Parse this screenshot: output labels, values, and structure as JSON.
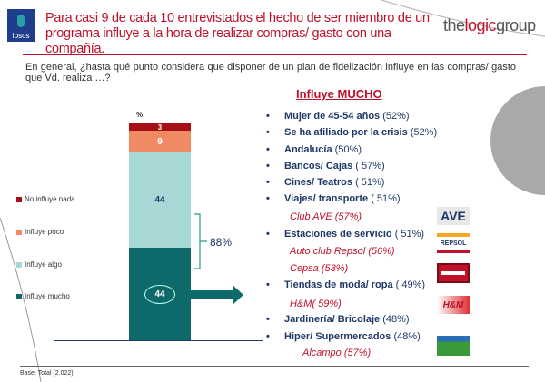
{
  "header": {
    "ipsos_logo": "Ipsos",
    "title": "Para casi 9 de cada 10 entrevistados el hecho de ser miembro de un programa influye a la hora de realizar compras/ gasto con una compañía.",
    "brand_pre": "the",
    "brand_mid": "logic",
    "brand_post": "group"
  },
  "question": "En general, ¿hasta qué punto considera que disponer de un plan de fidelización influye en las compras/ gasto que Vd. realiza …?",
  "chart": {
    "unit_label": "%",
    "segments": [
      {
        "label": "No influye nada",
        "value": 3,
        "color": "#a50f15"
      },
      {
        "label": "Influye poco",
        "value": 9,
        "color": "#ef8a62"
      },
      {
        "label": "Influye algo",
        "value": 44,
        "color": "#a8d8d6"
      },
      {
        "label": "Influye mucho",
        "value": 44,
        "color": "#0e6a6a"
      }
    ],
    "bracket_label": "88%"
  },
  "right": {
    "title": "Influye MUCHO",
    "items": [
      {
        "label": "Mujer de 45-54 años",
        "pct": "(52%)"
      },
      {
        "label": "Se ha afiliado por la crisis",
        "pct": "(52%)"
      },
      {
        "label": "Andalucía",
        "pct": "(50%)"
      },
      {
        "label": "Bancos/ Cajas",
        "pct": "( 57%)"
      },
      {
        "label": "Cines/ Teatros",
        "pct": "( 51%)"
      },
      {
        "label": "Viajes/ transporte",
        "pct": "( 51%)"
      },
      {
        "label": "Estaciones de servicio",
        "pct": "( 51%)"
      },
      {
        "label": "Tiendas de moda/ ropa",
        "pct": "( 49%)"
      },
      {
        "label": "Jardinería/ Bricolaje",
        "pct": "(48%)"
      },
      {
        "label": "Hiper/ Supermercados",
        "pct": "(48%)"
      }
    ],
    "subs": [
      "Club AVE (57%)",
      "Auto club Repsol  (56%)",
      "Cepsa (53%)",
      "H&M( 59%)",
      "Alcampo (57%)"
    ],
    "logos": [
      "AVE",
      "REPSOL",
      "H&M"
    ]
  },
  "footer": {
    "base": "Base: Total (2.022)"
  }
}
